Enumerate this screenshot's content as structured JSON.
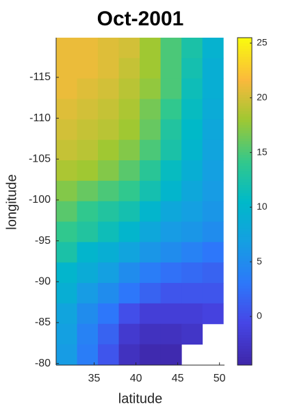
{
  "chart_data": {
    "type": "heatmap",
    "title": "Oct-2001",
    "x_label": "latitude",
    "y_label": "longitude",
    "x": [
      31.7,
      34.2,
      36.7,
      39.2,
      41.7,
      44.2,
      46.7,
      49.2
    ],
    "y": [
      -118.6,
      -116.1,
      -113.6,
      -111.1,
      -108.6,
      -106.1,
      -103.6,
      -101.1,
      -98.6,
      -96.1,
      -93.6,
      -91.1,
      -88.6,
      -86.1,
      -83.6,
      -81.1
    ],
    "z": [
      [
        21,
        21,
        20.5,
        20,
        18,
        15,
        12.5,
        9.5
      ],
      [
        21,
        21,
        20.5,
        19.5,
        18,
        15,
        12,
        9
      ],
      [
        21,
        20.5,
        20,
        19,
        17.5,
        15,
        11.5,
        9
      ],
      [
        20.5,
        20,
        19.5,
        18.5,
        16.5,
        14,
        11,
        8.5
      ],
      [
        20,
        19.5,
        19,
        18,
        16,
        13,
        10.5,
        8
      ],
      [
        19.5,
        19,
        18,
        17,
        15,
        12.5,
        10,
        7.5
      ],
      [
        18.5,
        18,
        17,
        15.5,
        13.5,
        11,
        9,
        7
      ],
      [
        17,
        16,
        15,
        14,
        12,
        10,
        8,
        6.5
      ],
      [
        15.5,
        14,
        13,
        12,
        10,
        8,
        7,
        6
      ],
      [
        14,
        13,
        11.5,
        10,
        8,
        6.5,
        6,
        5
      ],
      [
        12.5,
        10,
        9,
        7.5,
        6,
        5,
        4,
        3
      ],
      [
        10,
        8.5,
        7,
        5,
        3.5,
        2.5,
        2,
        1.5
      ],
      [
        9,
        6.5,
        5,
        3,
        1.5,
        0.5,
        0.5,
        0.5
      ],
      [
        7.5,
        5,
        3,
        0,
        -1.5,
        -1.5,
        -1.5,
        -1
      ],
      [
        7,
        4,
        1.5,
        -2,
        -3,
        -3,
        -2.5,
        null
      ],
      [
        6.5,
        3.5,
        0.5,
        -3,
        -4,
        -4,
        null,
        null
      ]
    ],
    "xlim": [
      30.45,
      50.6
    ],
    "xticks": [
      35,
      40,
      45,
      50
    ],
    "ylim": [
      -119.85,
      -79.8
    ],
    "yticks": [
      -115,
      -110,
      -105,
      -100,
      -95,
      -90,
      -85,
      -80
    ],
    "y_reversed": true,
    "clim": [
      -4.45,
      25.5
    ],
    "cticks": [
      0,
      5,
      10,
      15,
      20,
      25
    ],
    "colormap": "parula"
  }
}
